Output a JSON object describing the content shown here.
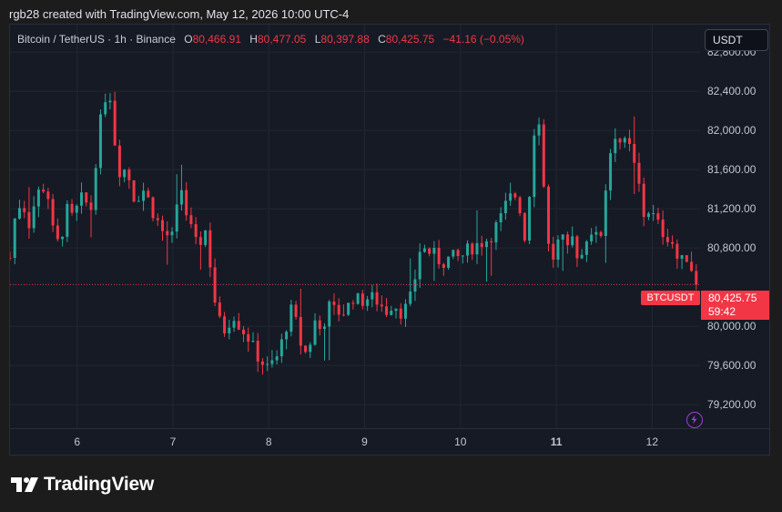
{
  "header": {
    "text": "rgb28 created with TradingView.com, May 12, 2026 10:00 UTC-4"
  },
  "legend": {
    "symbol": "Bitcoin / TetherUS · 1h · Binance",
    "o_label": "O",
    "o": "80,466.91",
    "h_label": "H",
    "h": "80,477.05",
    "l_label": "L",
    "l": "80,397.88",
    "c_label": "C",
    "c": "80,425.75",
    "change": "−41.16 (−0.05%)"
  },
  "currency_button": "USDT",
  "last_price": {
    "symbol": "BTCUSDT",
    "price": "80,425.75",
    "countdown": "59:42"
  },
  "brand": {
    "name": "TradingView"
  },
  "icons": [
    "tradingview-logo-icon",
    "lightning-icon"
  ],
  "colors": {
    "up": "#26a69a",
    "down": "#f23645",
    "background": "#161a25",
    "grid": "#232733"
  },
  "chart_data": {
    "type": "candlestick",
    "title": "Bitcoin / TetherUS · 1h · Binance",
    "y_ticks": [
      "82,800.00",
      "82,400.00",
      "82,000.00",
      "81,600.00",
      "81,200.00",
      "80,800.00",
      "80,000.00",
      "79,600.00",
      "79,200.00"
    ],
    "y_tick_values": [
      82800,
      82400,
      82000,
      81600,
      81200,
      80800,
      80000,
      79600,
      79200
    ],
    "x_ticks": [
      "6",
      "7",
      "8",
      "9",
      "10",
      "11",
      "12"
    ],
    "ylim": [
      78960,
      83080
    ],
    "xlim": [
      5.3,
      12.5
    ],
    "grid": true,
    "last_price": 80425.75,
    "close_path": [
      [
        5.3,
        80700
      ],
      [
        5.35,
        81100
      ],
      [
        5.42,
        81300
      ],
      [
        5.5,
        81050
      ],
      [
        5.58,
        81350
      ],
      [
        5.68,
        81450
      ],
      [
        5.75,
        80950
      ],
      [
        5.82,
        80800
      ],
      [
        5.88,
        81200
      ],
      [
        5.95,
        81100
      ],
      [
        6.05,
        81300
      ],
      [
        6.15,
        81200
      ],
      [
        6.2,
        81750
      ],
      [
        6.26,
        82200
      ],
      [
        6.33,
        82500
      ],
      [
        6.38,
        82000
      ],
      [
        6.43,
        81600
      ],
      [
        6.52,
        81600
      ],
      [
        6.6,
        81300
      ],
      [
        6.7,
        81400
      ],
      [
        6.8,
        81150
      ],
      [
        6.9,
        80950
      ],
      [
        7.0,
        80900
      ],
      [
        7.08,
        81450
      ],
      [
        7.15,
        81100
      ],
      [
        7.25,
        80800
      ],
      [
        7.35,
        81000
      ],
      [
        7.42,
        80350
      ],
      [
        7.48,
        80050
      ],
      [
        7.55,
        79950
      ],
      [
        7.62,
        80150
      ],
      [
        7.7,
        80000
      ],
      [
        7.78,
        79900
      ],
      [
        7.85,
        79750
      ],
      [
        7.92,
        79650
      ],
      [
        8.0,
        79550
      ],
      [
        8.05,
        79650
      ],
      [
        8.1,
        79700
      ],
      [
        8.18,
        80000
      ],
      [
        8.25,
        80200
      ],
      [
        8.32,
        79850
      ],
      [
        8.4,
        79700
      ],
      [
        8.48,
        80050
      ],
      [
        8.55,
        79950
      ],
      [
        8.62,
        80200
      ],
      [
        8.7,
        80150
      ],
      [
        8.8,
        80150
      ],
      [
        8.88,
        80300
      ],
      [
        8.95,
        80250
      ],
      [
        9.05,
        80300
      ],
      [
        9.15,
        80250
      ],
      [
        9.22,
        80150
      ],
      [
        9.3,
        80250
      ],
      [
        9.38,
        80150
      ],
      [
        9.45,
        80200
      ],
      [
        9.5,
        80350
      ],
      [
        9.58,
        80800
      ],
      [
        9.7,
        80750
      ],
      [
        9.8,
        80650
      ],
      [
        9.9,
        80700
      ],
      [
        10.0,
        80700
      ],
      [
        10.1,
        80800
      ],
      [
        10.2,
        80850
      ],
      [
        10.3,
        80900
      ],
      [
        10.42,
        81100
      ],
      [
        10.5,
        81300
      ],
      [
        10.6,
        81350
      ],
      [
        10.65,
        81000
      ],
      [
        10.7,
        80750
      ],
      [
        10.73,
        81700
      ],
      [
        10.78,
        82100
      ],
      [
        10.83,
        82050
      ],
      [
        10.88,
        81300
      ],
      [
        10.92,
        80800
      ],
      [
        10.97,
        80700
      ],
      [
        11.05,
        80950
      ],
      [
        11.1,
        80700
      ],
      [
        11.17,
        80900
      ],
      [
        11.25,
        80650
      ],
      [
        11.3,
        80900
      ],
      [
        11.38,
        81000
      ],
      [
        11.45,
        80800
      ],
      [
        11.5,
        81300
      ],
      [
        11.55,
        81700
      ],
      [
        11.6,
        82000
      ],
      [
        11.65,
        81900
      ],
      [
        11.72,
        81850
      ],
      [
        11.78,
        81800
      ],
      [
        11.82,
        81600
      ],
      [
        11.87,
        81400
      ],
      [
        11.92,
        81100
      ],
      [
        11.97,
        81200
      ],
      [
        12.05,
        81050
      ],
      [
        12.12,
        80950
      ],
      [
        12.2,
        80900
      ],
      [
        12.25,
        80700
      ],
      [
        12.32,
        80650
      ],
      [
        12.38,
        80750
      ],
      [
        12.42,
        80550
      ],
      [
        12.46,
        80425.75
      ]
    ]
  }
}
